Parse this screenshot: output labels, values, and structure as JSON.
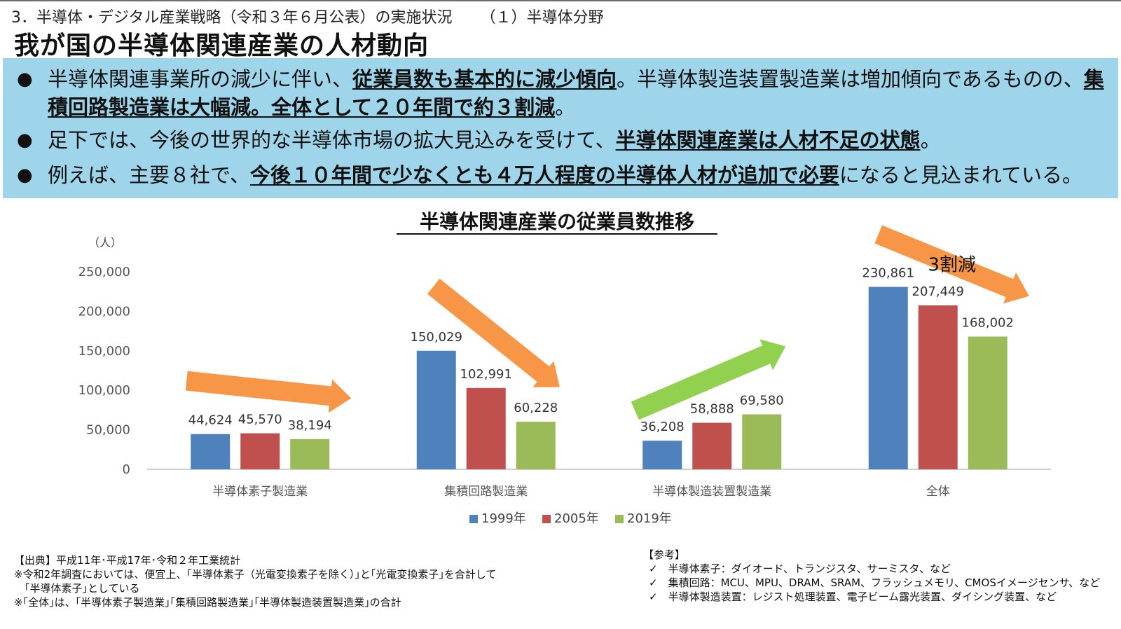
{
  "header": {
    "section": "3．半導体・デジタル産業戦略（令和３年６月公表）の実施状況",
    "subsection": "（１）半導体分野",
    "title": "我が国の半導体関連産業の人材動向"
  },
  "summary": {
    "bullets": [
      {
        "parts": [
          {
            "text": "半導体関連事業所の減少に伴い、",
            "em": false
          },
          {
            "text": "従業員数も基本的に減少傾向",
            "em": true
          },
          {
            "text": "。半導体製造装置製造業は増加傾向であるものの、",
            "em": false
          },
          {
            "text": "集積回路製造業は大幅減。全体として２０年間で約３割減",
            "em": true
          },
          {
            "text": "。",
            "em": false
          }
        ]
      },
      {
        "parts": [
          {
            "text": "足下では、今後の世界的な半導体市場の拡大見込みを受けて、",
            "em": false
          },
          {
            "text": "半導体関連産業は人材不足の状態",
            "em": true
          },
          {
            "text": "。",
            "em": false
          }
        ]
      },
      {
        "parts": [
          {
            "text": "例えば、主要８社で、",
            "em": false
          },
          {
            "text": "今後１０年間で少なくとも４万人程度の半導体人材が追加で必要",
            "em": true
          },
          {
            "text": "になると見込まれている。",
            "em": false
          }
        ]
      }
    ]
  },
  "chart_data": {
    "type": "bar",
    "title": "半導体関連産業の従業員数推移",
    "ylabel": "（人）",
    "ylim": [
      0,
      250000
    ],
    "yticks": [
      0,
      50000,
      100000,
      150000,
      200000,
      250000
    ],
    "ytick_labels": [
      "0",
      "50,000",
      "100,000",
      "150,000",
      "200,000",
      "250,000"
    ],
    "categories": [
      "半導体素子製造業",
      "集積回路製造業",
      "半導体製造装置製造業",
      "全体"
    ],
    "series": [
      {
        "name": "1999年",
        "color": "#4f81bd",
        "values": [
          44624,
          150029,
          36208,
          230861
        ],
        "labels": [
          "44,624",
          "150,029",
          "36,208",
          "230,861"
        ]
      },
      {
        "name": "2005年",
        "color": "#c0504d",
        "values": [
          45570,
          102991,
          58888,
          207449
        ],
        "labels": [
          "45,570",
          "102,991",
          "58,888",
          "207,449"
        ]
      },
      {
        "name": "2019年",
        "color": "#9bbb59",
        "values": [
          38194,
          60228,
          69580,
          168002
        ],
        "labels": [
          "38,194",
          "60,228",
          "69,580",
          "168,002"
        ]
      }
    ],
    "legend_position": "bottom",
    "grid": false,
    "annotations": [
      {
        "text": "3割減",
        "category": "全体"
      }
    ],
    "trend_arrows": [
      {
        "category": "半導体素子製造業",
        "direction": "flat",
        "color": "#f79646"
      },
      {
        "category": "集積回路製造業",
        "direction": "down",
        "color": "#f79646"
      },
      {
        "category": "半導体製造装置製造業",
        "direction": "up",
        "color": "#92d050"
      },
      {
        "category": "全体",
        "direction": "down",
        "color": "#f79646"
      }
    ]
  },
  "footnotes": {
    "source": [
      "【出典】平成11年･平成17年･令和２年工業統計",
      "※令和2年調査においては、便宜上、｢半導体素子（光電変換素子を除く）｣と｢光電変換素子｣を合計して",
      "　｢半導体素子｣としている",
      "※｢全体｣は、｢半導体素子製造業｣｢集積回路製造業｣｢半導体製造装置製造業｣の合計"
    ],
    "reference_title": "【参考】",
    "reference_items": [
      "✓　半導体素子：ダイオード、トランジスタ、サーミスタ、など",
      "✓　集積回路：MCU、MPU、DRAM、SRAM、フラッシュメモリ、CMOSイメージセンサ、など",
      "✓　半導体製造装置：レジスト処理装置、電子ビーム露光装置、ダイシング装置、など"
    ]
  }
}
